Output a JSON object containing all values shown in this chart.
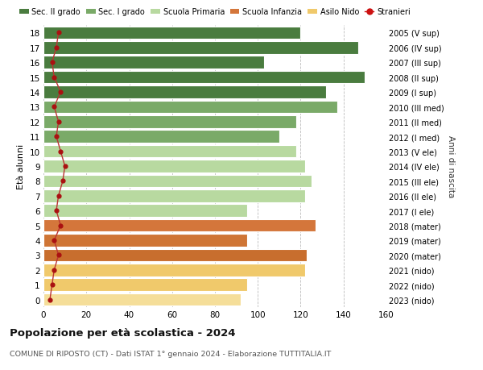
{
  "ages": [
    18,
    17,
    16,
    15,
    14,
    13,
    12,
    11,
    10,
    9,
    8,
    7,
    6,
    5,
    4,
    3,
    2,
    1,
    0
  ],
  "values": [
    120,
    147,
    103,
    150,
    132,
    137,
    118,
    110,
    118,
    122,
    125,
    122,
    95,
    127,
    95,
    123,
    122,
    95,
    92
  ],
  "stranieri": [
    7,
    6,
    4,
    5,
    8,
    5,
    7,
    6,
    8,
    10,
    9,
    7,
    6,
    8,
    5,
    7,
    5,
    4,
    3
  ],
  "right_labels": [
    "2005 (V sup)",
    "2006 (IV sup)",
    "2007 (III sup)",
    "2008 (II sup)",
    "2009 (I sup)",
    "2010 (III med)",
    "2011 (II med)",
    "2012 (I med)",
    "2013 (V ele)",
    "2014 (IV ele)",
    "2015 (III ele)",
    "2016 (II ele)",
    "2017 (I ele)",
    "2018 (mater)",
    "2019 (mater)",
    "2020 (mater)",
    "2021 (nido)",
    "2022 (nido)",
    "2023 (nido)"
  ],
  "bar_colors": [
    "#4a7c3f",
    "#4a7c3f",
    "#4a7c3f",
    "#4a7c3f",
    "#4a7c3f",
    "#7aaa68",
    "#7aaa68",
    "#7aaa68",
    "#b8d9a0",
    "#b8d9a0",
    "#b8d9a0",
    "#b8d9a0",
    "#b8d9a0",
    "#d4763b",
    "#cf7535",
    "#c86e2e",
    "#f0c96b",
    "#f0c96b",
    "#f5de99"
  ],
  "stranieri_color": "#aa1111",
  "stranieri_line_color": "#bb3333",
  "legend_labels": [
    "Sec. II grado",
    "Sec. I grado",
    "Scuola Primaria",
    "Scuola Infanzia",
    "Asilo Nido",
    "Stranieri"
  ],
  "legend_colors": [
    "#4a7c3f",
    "#7aaa68",
    "#b8d9a0",
    "#d4763b",
    "#f0c96b",
    "#cc1111"
  ],
  "title": "Popolazione per età scolastica - 2024",
  "subtitle": "COMUNE DI RIPOSTO (CT) - Dati ISTAT 1° gennaio 2024 - Elaborazione TUTTITALIA.IT",
  "ylabel": "Età alunni",
  "right_ylabel": "Anni di nascita",
  "xlim": [
    0,
    160
  ],
  "xticks": [
    0,
    20,
    40,
    60,
    80,
    100,
    120,
    140,
    160
  ],
  "background_color": "#ffffff",
  "grid_color": "#bbbbbb"
}
